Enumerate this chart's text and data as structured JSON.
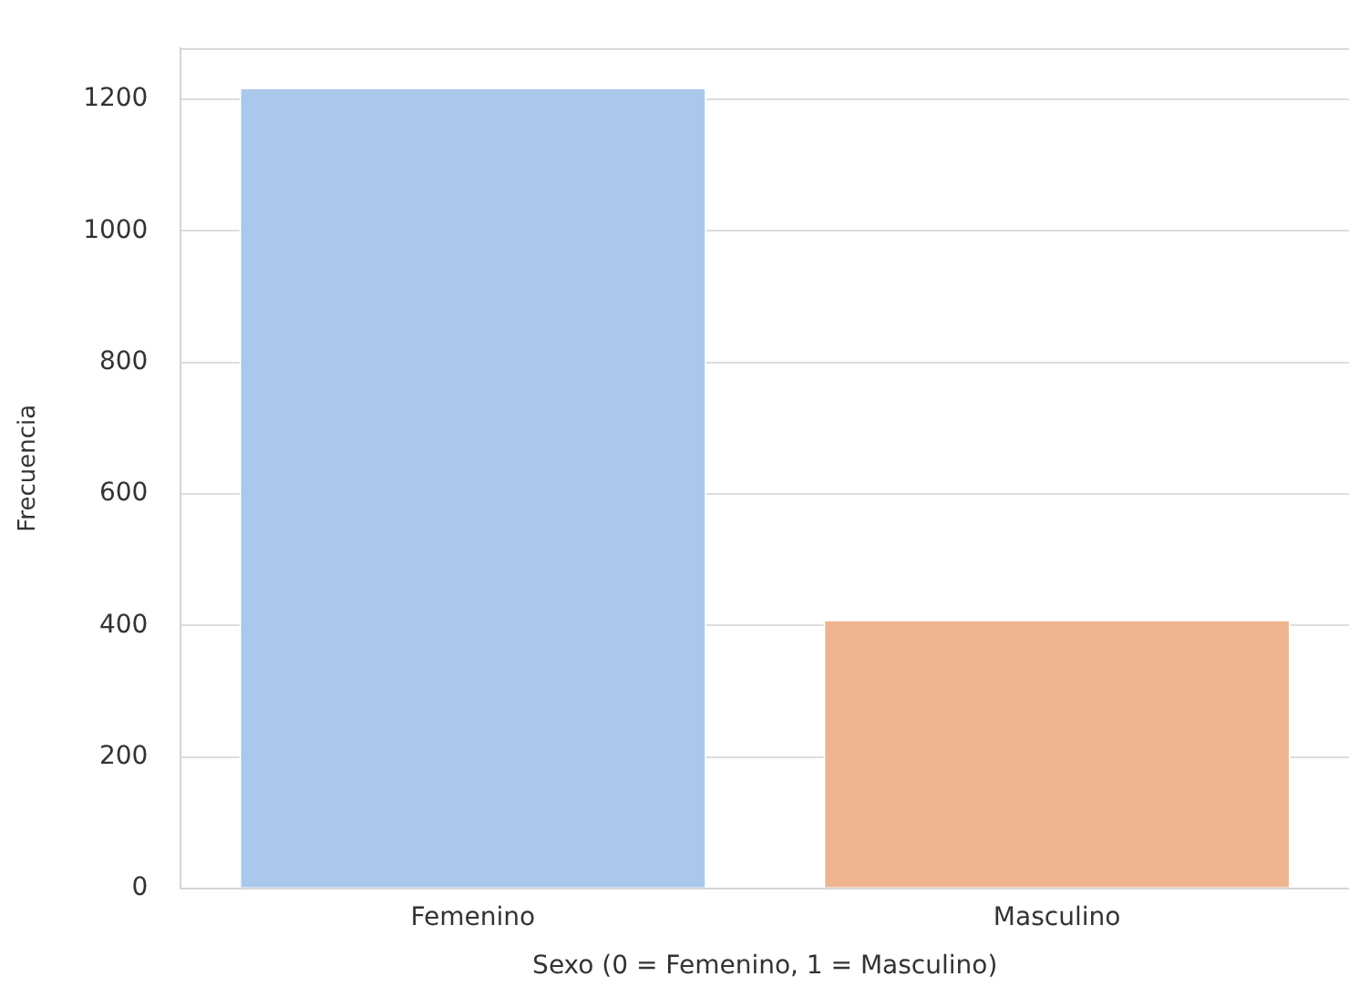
{
  "chart_data": {
    "type": "bar",
    "xlabel": "Sexo (0 = Femenino, 1 = Masculino)",
    "ylabel": "Frecuencia",
    "categories": [
      "Femenino",
      "Masculino"
    ],
    "values": [
      1218,
      409
    ],
    "colors": [
      "#a9c8eb",
      "#eeb491"
    ],
    "ylim": [
      0,
      1278
    ],
    "yticks": [
      0,
      200,
      400,
      600,
      800,
      1000,
      1200
    ],
    "grid": "y",
    "legend": false
  }
}
